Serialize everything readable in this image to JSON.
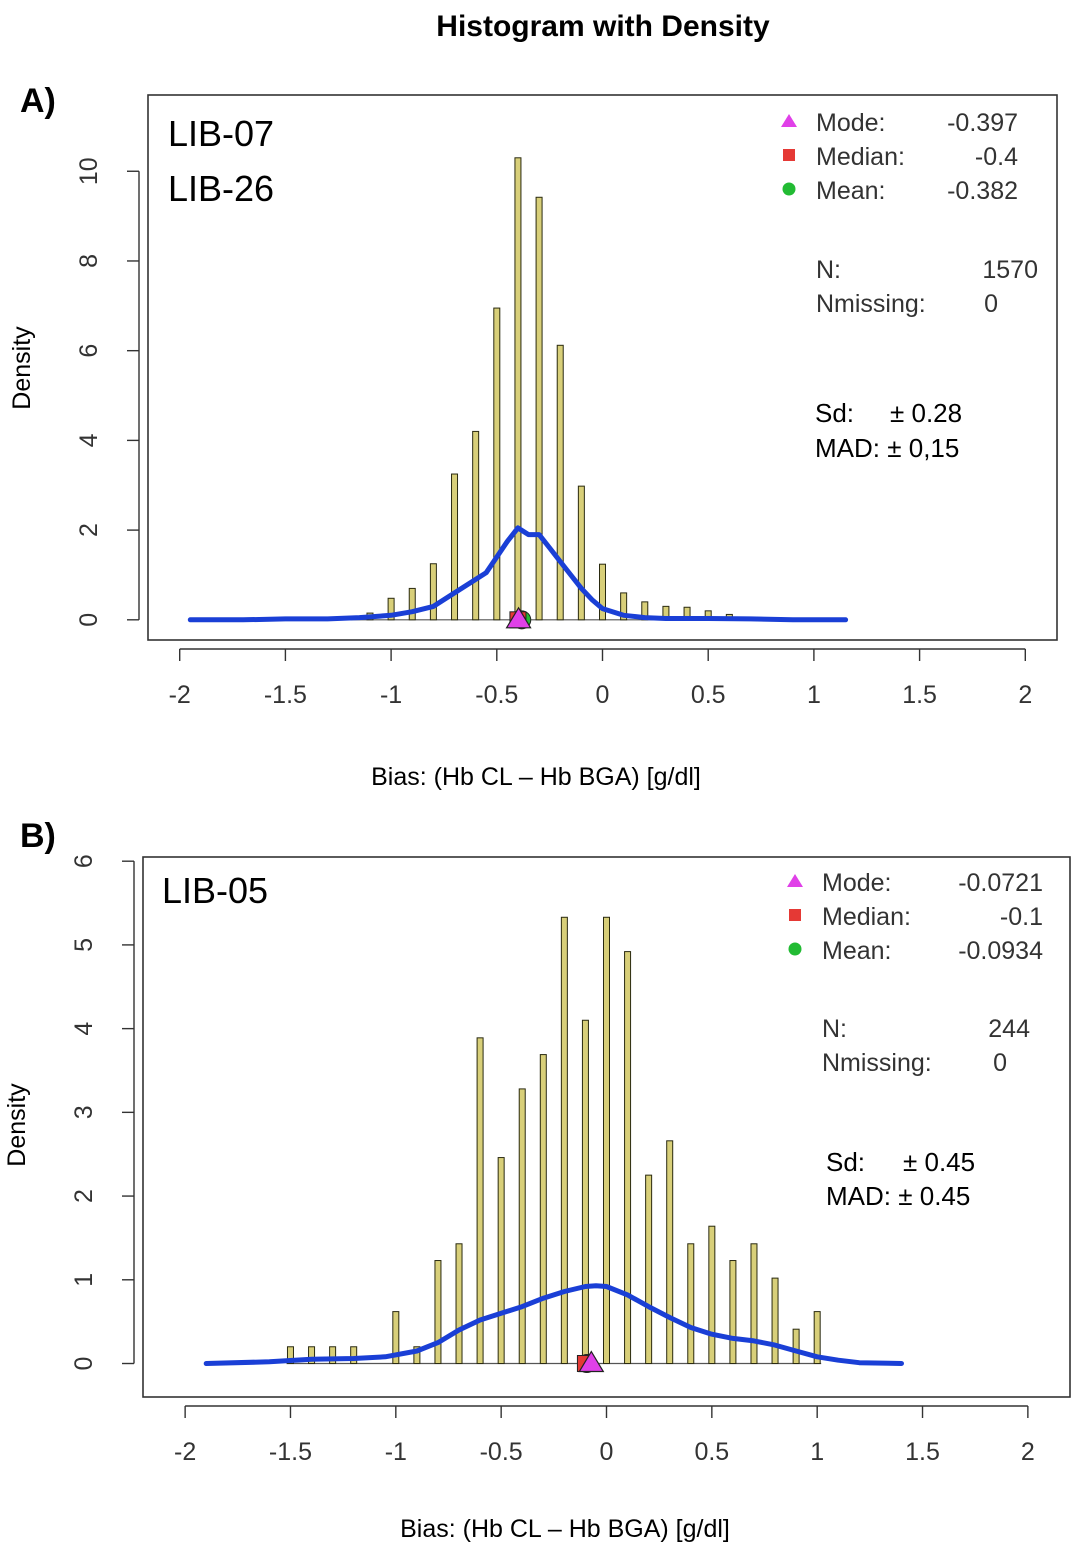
{
  "figure_title": "Histogram with Density",
  "colors": {
    "bar_fill": "#d8cf79",
    "bar_stroke": "#2a2a10",
    "density_line": "#1a3fd6",
    "mode_marker": "#e040e8",
    "median_marker": "#e53935",
    "mean_marker": "#22bb33",
    "frame": "#333333"
  },
  "chart_data": [
    {
      "type": "bar",
      "panel_label": "A)",
      "groups": [
        "LIB-07",
        "LIB-26"
      ],
      "xlabel": "Bias: (Hb CL – Hb BGA) [g/dl]",
      "ylabel": "Density",
      "xlim": [
        -2.15,
        2.15
      ],
      "ylim": [
        -0.45,
        11.7
      ],
      "x_ticks": [
        "-2",
        "-1.5",
        "-1",
        "-0.5",
        "0",
        "0.5",
        "1",
        "1.5",
        "2"
      ],
      "y_ticks": [
        "0",
        "2",
        "4",
        "6",
        "8",
        "10"
      ],
      "bars": {
        "x": [
          -1.5,
          -1.3,
          -1.2,
          -1.1,
          -1.0,
          -0.9,
          -0.8,
          -0.7,
          -0.6,
          -0.5,
          -0.4,
          -0.3,
          -0.2,
          -0.1,
          0.0,
          0.1,
          0.2,
          0.3,
          0.4,
          0.5,
          0.6
        ],
        "values": [
          0.05,
          0.05,
          0.05,
          0.15,
          0.48,
          0.7,
          1.25,
          3.25,
          4.2,
          6.95,
          10.3,
          9.42,
          6.12,
          2.98,
          1.24,
          0.6,
          0.4,
          0.3,
          0.28,
          0.2,
          0.12
        ]
      },
      "density": {
        "x": [
          -1.95,
          -1.7,
          -1.5,
          -1.3,
          -1.15,
          -1.0,
          -0.9,
          -0.8,
          -0.7,
          -0.6,
          -0.55,
          -0.5,
          -0.45,
          -0.4,
          -0.35,
          -0.3,
          -0.25,
          -0.2,
          -0.15,
          -0.1,
          -0.05,
          0.0,
          0.1,
          0.2,
          0.3,
          0.5,
          0.7,
          0.9,
          1.15
        ],
        "y": [
          0.0,
          0.0,
          0.02,
          0.02,
          0.05,
          0.1,
          0.18,
          0.3,
          0.6,
          0.9,
          1.05,
          1.4,
          1.75,
          2.05,
          1.9,
          1.9,
          1.6,
          1.3,
          1.0,
          0.7,
          0.45,
          0.25,
          0.1,
          0.05,
          0.03,
          0.03,
          0.02,
          0.0,
          0.0
        ]
      },
      "markers": {
        "mode": -0.397,
        "median": -0.4,
        "mean": -0.382
      },
      "legend": [
        {
          "key": "mode",
          "label": "Mode:",
          "value": "-0.397"
        },
        {
          "key": "median",
          "label": "Median:",
          "value": "-0.4"
        },
        {
          "key": "mean",
          "label": "Mean:",
          "value": "-0.382"
        }
      ],
      "n_label": "N:",
      "n_value": "1570",
      "nmissing_label": "Nmissing:",
      "nmissing_value": "0",
      "sd_label": "Sd:",
      "sd_value": "± 0.28",
      "mad_label": "MAD:",
      "mad_value": "± 0,15"
    },
    {
      "type": "bar",
      "panel_label": "B)",
      "groups": [
        "LIB-05"
      ],
      "xlabel": "Bias: (Hb CL – Hb BGA) [g/dl]",
      "ylabel": "Density",
      "xlim": [
        -2.2,
        2.2
      ],
      "ylim": [
        -0.4,
        6.05
      ],
      "x_ticks": [
        "-2",
        "-1.5",
        "-1",
        "-0.5",
        "0",
        "0.5",
        "1",
        "1.5",
        "2"
      ],
      "y_ticks": [
        "0",
        "1",
        "2",
        "3",
        "4",
        "5",
        "6"
      ],
      "bars": {
        "x": [
          -1.5,
          -1.4,
          -1.3,
          -1.2,
          -1.0,
          -0.9,
          -0.8,
          -0.7,
          -0.6,
          -0.5,
          -0.4,
          -0.3,
          -0.2,
          -0.1,
          0.0,
          0.1,
          0.2,
          0.3,
          0.4,
          0.5,
          0.6,
          0.7,
          0.8,
          0.9,
          1.0
        ],
        "values": [
          0.2,
          0.2,
          0.2,
          0.2,
          0.62,
          0.2,
          1.23,
          1.43,
          3.89,
          2.46,
          3.28,
          3.69,
          5.33,
          4.1,
          5.33,
          4.92,
          2.25,
          2.66,
          1.43,
          1.64,
          1.23,
          1.43,
          1.02,
          0.41,
          0.62
        ]
      },
      "density": {
        "x": [
          -1.9,
          -1.6,
          -1.4,
          -1.2,
          -1.05,
          -0.9,
          -0.8,
          -0.7,
          -0.6,
          -0.5,
          -0.4,
          -0.3,
          -0.2,
          -0.1,
          -0.05,
          0.0,
          0.1,
          0.2,
          0.3,
          0.4,
          0.5,
          0.6,
          0.7,
          0.8,
          0.9,
          1.0,
          1.1,
          1.2,
          1.4
        ],
        "y": [
          0.0,
          0.02,
          0.05,
          0.06,
          0.08,
          0.15,
          0.25,
          0.4,
          0.52,
          0.6,
          0.68,
          0.78,
          0.86,
          0.92,
          0.93,
          0.92,
          0.82,
          0.68,
          0.55,
          0.43,
          0.35,
          0.3,
          0.27,
          0.22,
          0.15,
          0.08,
          0.04,
          0.01,
          0.0
        ]
      },
      "markers": {
        "mode": -0.0721,
        "median": -0.1,
        "mean": -0.0934
      },
      "legend": [
        {
          "key": "mode",
          "label": "Mode:",
          "value": "-0.0721"
        },
        {
          "key": "median",
          "label": "Median:",
          "value": "-0.1"
        },
        {
          "key": "mean",
          "label": "Mean:",
          "value": "-0.0934"
        }
      ],
      "n_label": "N:",
      "n_value": "244",
      "nmissing_label": "Nmissing:",
      "nmissing_value": "0",
      "sd_label": "Sd:",
      "sd_value": "± 0.45",
      "mad_label": "MAD:",
      "mad_value": "± 0.45"
    }
  ]
}
